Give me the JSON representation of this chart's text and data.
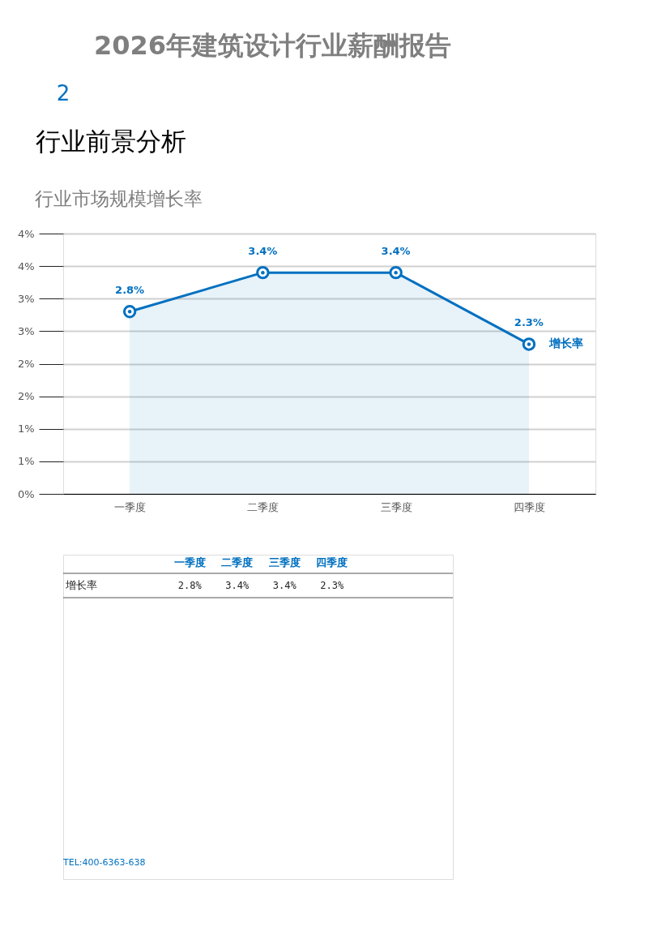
{
  "chart_data": {
    "type": "area",
    "title": "2026年建筑设计行业薪酬报告",
    "subtitle": "行业市场规模增长率",
    "annotations": [
      "2",
      "行业前景分析",
      "TEL:400-6363-638"
    ],
    "categories": [
      "一季度",
      "二季度",
      "三季度",
      "四季度"
    ],
    "series": [
      {
        "name": "增长率",
        "color": "#0070c0",
        "values": [
          2.8,
          3.4,
          3.4,
          2.3
        ],
        "value_labels": [
          "2.8%",
          "3.4%",
          "3.4%",
          "2.3%"
        ]
      }
    ],
    "ylim": [
      0,
      4
    ],
    "yticks": [
      {
        "value": 0,
        "label": "0%"
      },
      {
        "value": 0.5,
        "label": "1%"
      },
      {
        "value": 1,
        "label": "1%"
      },
      {
        "value": 1.5,
        "label": "2%"
      },
      {
        "value": 2,
        "label": "2%"
      },
      {
        "value": 2.5,
        "label": "3%"
      },
      {
        "value": 3,
        "label": "3%"
      },
      {
        "value": 3.5,
        "label": "4%"
      },
      {
        "value": 4,
        "label": "4%"
      }
    ],
    "grid": "y",
    "marker": "circle",
    "line_style": "solid"
  }
}
